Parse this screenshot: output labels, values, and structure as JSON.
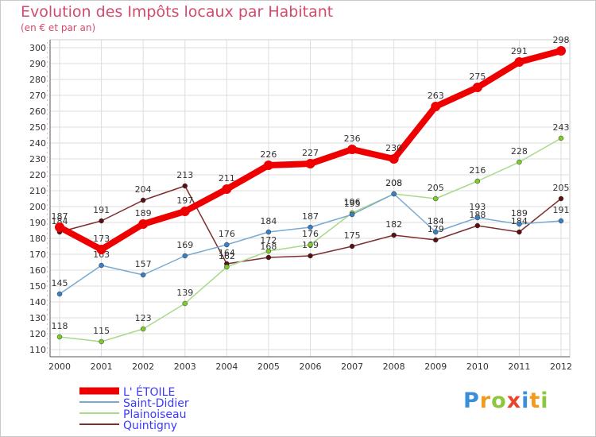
{
  "title": "Evolution des Impôts locaux par Habitant",
  "subtitle": "(en € et par an)",
  "logo": {
    "letters": [
      "P",
      "r",
      "o",
      "x",
      "i",
      "t",
      "i"
    ],
    "colors": [
      "#3a8fd8",
      "#f29a1e",
      "#8dc63f",
      "#e8452c",
      "#3a8fd8",
      "#f29a1e",
      "#8dc63f"
    ]
  },
  "chart_data": {
    "type": "line",
    "title": "Evolution des Impôts locaux par Habitant",
    "ylabel": "(en € et par an)",
    "x": [
      "2000",
      "2001",
      "2002",
      "2003",
      "2004",
      "2005",
      "2006",
      "2007",
      "2008",
      "2009",
      "2010",
      "2011",
      "2012"
    ],
    "ylim": [
      110,
      300
    ],
    "yticks": [
      110,
      120,
      130,
      140,
      150,
      160,
      170,
      180,
      190,
      200,
      210,
      220,
      230,
      240,
      250,
      260,
      270,
      280,
      290,
      300
    ],
    "grid": true,
    "legend_position": "bottom-left",
    "series": [
      {
        "name": "Quintigny",
        "color": "#7b2f2f",
        "marker": "#5a1010",
        "values": [
          184,
          191,
          204,
          213,
          164,
          168,
          169,
          175,
          182,
          179,
          188,
          184,
          205
        ]
      },
      {
        "name": "Plainoiseau",
        "color": "#a9d98a",
        "marker": "#7ccc2c",
        "values": [
          118,
          115,
          123,
          139,
          162,
          172,
          176,
          196,
          208,
          205,
          216,
          228,
          243
        ]
      },
      {
        "name": "Saint-Didier",
        "color": "#7aa9d0",
        "marker": "#3a7fc4",
        "values": [
          145,
          163,
          157,
          169,
          176,
          184,
          187,
          195,
          208,
          184,
          193,
          189,
          191
        ]
      },
      {
        "name": "L' ÉTOILE",
        "color": "#ee0000",
        "marker": "#ee0000",
        "values": [
          187,
          173,
          189,
          197,
          211,
          226,
          227,
          236,
          230,
          263,
          275,
          291,
          298
        ]
      }
    ]
  }
}
